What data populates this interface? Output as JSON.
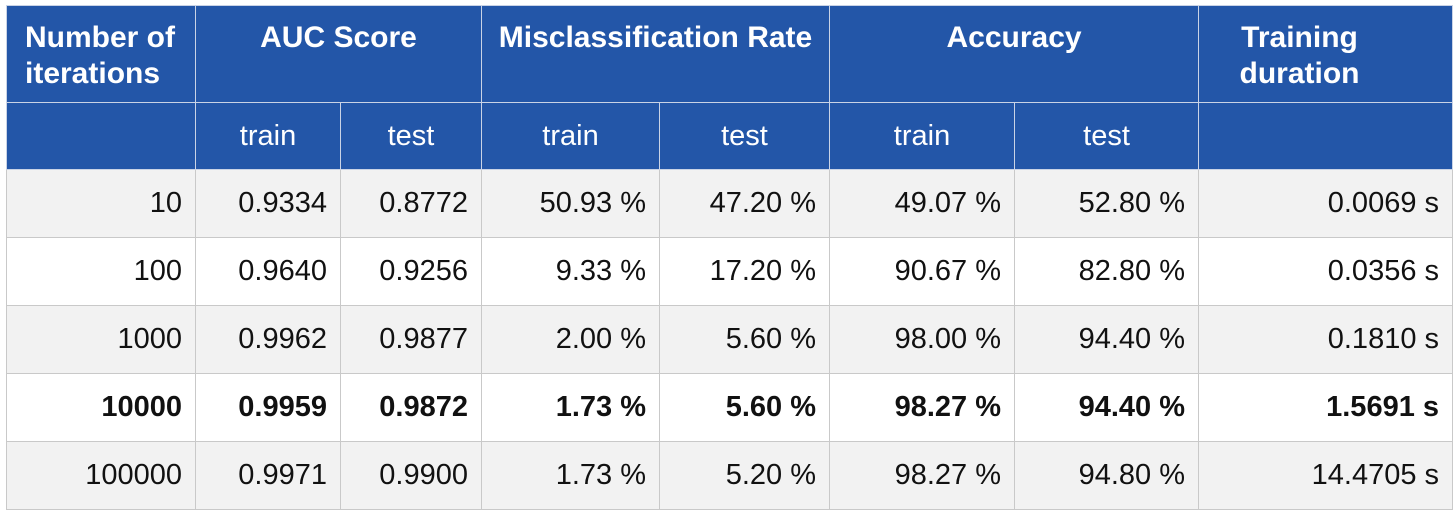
{
  "table": {
    "headers": {
      "iterations": "Number of iterations",
      "auc": "AUC Score",
      "misclassification": "Misclassification Rate",
      "accuracy": "Accuracy",
      "duration": "Training duration"
    },
    "sub_headers": {
      "auc_train": "train",
      "auc_test": "test",
      "mis_train": "train",
      "mis_test": "test",
      "acc_train": "train",
      "acc_test": "test"
    },
    "rows": [
      {
        "iterations": "10",
        "auc_train": "0.9334",
        "auc_test": "0.8772",
        "mis_train": "50.93 %",
        "mis_test": "47.20 %",
        "acc_train": "49.07 %",
        "acc_test": "52.80 %",
        "duration": "0.0069 s"
      },
      {
        "iterations": "100",
        "auc_train": "0.9640",
        "auc_test": "0.9256",
        "mis_train": "9.33 %",
        "mis_test": "17.20 %",
        "acc_train": "90.67 %",
        "acc_test": "82.80 %",
        "duration": "0.0356 s"
      },
      {
        "iterations": "1000",
        "auc_train": "0.9962",
        "auc_test": "0.9877",
        "mis_train": "2.00 %",
        "mis_test": "5.60 %",
        "acc_train": "98.00 %",
        "acc_test": "94.40 %",
        "duration": "0.1810 s"
      },
      {
        "iterations": "10000",
        "auc_train": "0.9959",
        "auc_test": "0.9872",
        "mis_train": "1.73 %",
        "mis_test": "5.60 %",
        "acc_train": "98.27 %",
        "acc_test": "94.40 %",
        "duration": "1.5691 s"
      },
      {
        "iterations": "100000",
        "auc_train": "0.9971",
        "auc_test": "0.9900",
        "mis_train": "1.73 %",
        "mis_test": "5.20 %",
        "acc_train": "98.27 %",
        "acc_test": "94.80 %",
        "duration": "14.4705 s"
      }
    ],
    "colors": {
      "header_bg": "#2356a8",
      "header_text": "#ffffff",
      "row_alt_bg": "#f2f2f2",
      "row_bg": "#ffffff",
      "border": "#c9c9c9"
    }
  }
}
